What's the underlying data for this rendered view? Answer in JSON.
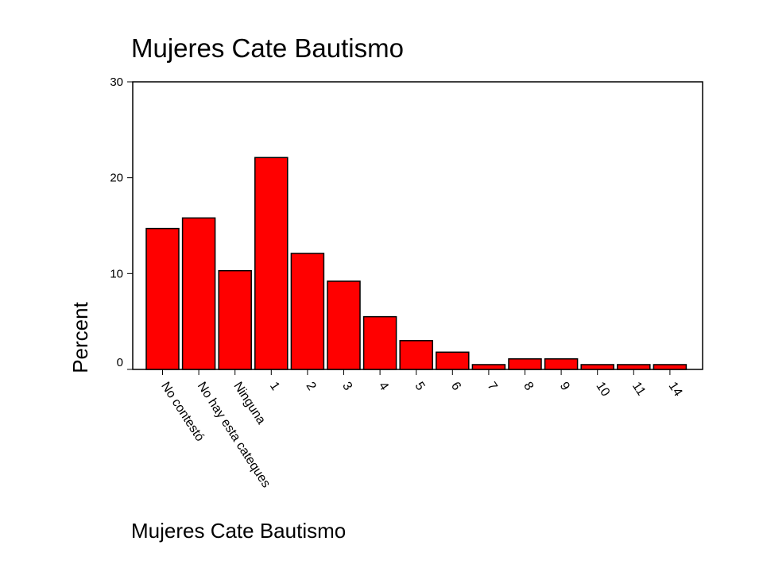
{
  "chart_data": {
    "type": "bar",
    "title": "Mujeres Cate Bautismo",
    "xlabel": "Mujeres Cate Bautismo",
    "ylabel": "Percent",
    "ylim": [
      0,
      30
    ],
    "yticks": [
      0,
      10,
      20,
      30
    ],
    "grid": false,
    "bar_color": "#ff0000",
    "categories": [
      "No contestó",
      "No hay esta cateques",
      "Ninguna",
      "1",
      "2",
      "3",
      "4",
      "5",
      "6",
      "7",
      "8",
      "9",
      "10",
      "11",
      "14"
    ],
    "values": [
      14.7,
      15.8,
      10.3,
      22.1,
      12.1,
      9.2,
      5.5,
      3.0,
      1.8,
      0.5,
      1.1,
      1.1,
      0.5,
      0.5,
      0.5
    ]
  }
}
